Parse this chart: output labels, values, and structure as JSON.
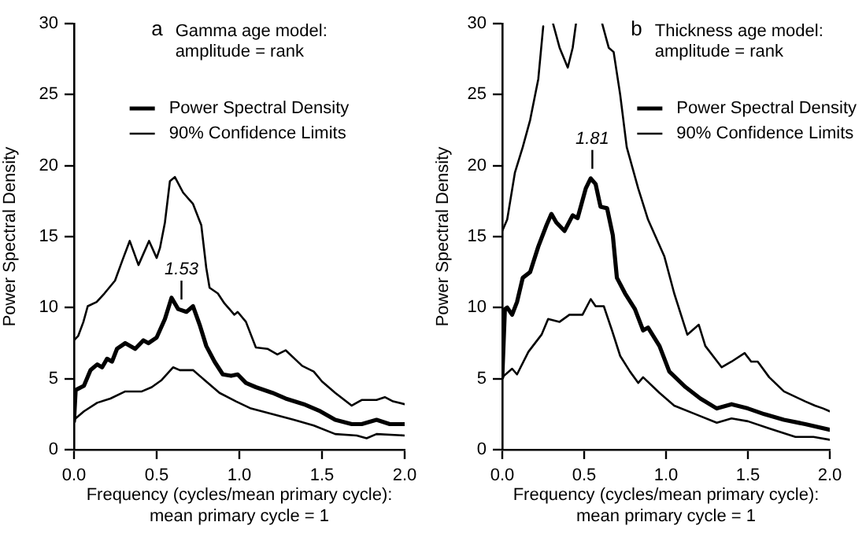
{
  "chart_data": [
    {
      "type": "line",
      "title": "Gamma age model: amplitude = rank",
      "xlabel": "Frequency (cycles/mean primary cycle): mean primary cycle = 1",
      "ylabel": "Power Spectral Density",
      "annotations": [
        "a",
        {
          "text": "1.53",
          "x": 0.65,
          "y": 9.8
        }
      ],
      "xlim": [
        0,
        2
      ],
      "ylim": [
        0,
        30
      ],
      "xticks": [
        {
          "value": 0,
          "label": "0.0"
        },
        {
          "value": 0.5,
          "label": "0.5"
        },
        {
          "value": 1,
          "label": "1.0"
        },
        {
          "value": 1.5,
          "label": "1.5"
        },
        {
          "value": 2,
          "label": "2.0"
        }
      ],
      "yticks": [
        0,
        5,
        10,
        15,
        20,
        25,
        30
      ],
      "legend": "top",
      "series": [
        {
          "name": "Power Spectral Density",
          "color": "#000000",
          "x": [
            0,
            0.01,
            0.06,
            0.1,
            0.14,
            0.17,
            0.2,
            0.23,
            0.26,
            0.31,
            0.37,
            0.42,
            0.45,
            0.5,
            0.55,
            0.59,
            0.63,
            0.68,
            0.72,
            0.76,
            0.8,
            0.85,
            0.9,
            0.95,
            0.99,
            1.04,
            1.1,
            1.2,
            1.28,
            1.39,
            1.49,
            1.58,
            1.68,
            1.74,
            1.83,
            1.91,
            2.0
          ],
          "values": [
            2.0,
            4.2,
            4.5,
            5.6,
            6.0,
            5.8,
            6.4,
            6.2,
            7.1,
            7.5,
            7.1,
            7.7,
            7.5,
            7.9,
            9.2,
            10.7,
            9.9,
            9.7,
            10.1,
            8.8,
            7.3,
            6.2,
            5.3,
            5.2,
            5.3,
            4.7,
            4.4,
            4.0,
            3.6,
            3.2,
            2.7,
            2.1,
            1.8,
            1.8,
            2.1,
            1.8,
            1.8
          ]
        },
        {
          "name": "90% Confidence Limits",
          "color": "#000000",
          "x": [
            0,
            0.025,
            0.057,
            0.083,
            0.137,
            0.184,
            0.248,
            0.295,
            0.337,
            0.39,
            0.454,
            0.5,
            0.52,
            0.55,
            0.58,
            0.61,
            0.66,
            0.72,
            0.77,
            0.8,
            0.82,
            0.87,
            0.91,
            0.97,
            0.99,
            1.04,
            1.1,
            1.17,
            1.23,
            1.28,
            1.38,
            1.45,
            1.5,
            1.58,
            1.68,
            1.74,
            1.83,
            1.88,
            1.93,
            2.0
          ],
          "values": [
            7.7,
            8.0,
            9.0,
            10.1,
            10.4,
            11.0,
            11.9,
            13.4,
            14.7,
            13.0,
            14.7,
            13.5,
            14.2,
            16.0,
            18.9,
            19.2,
            18.1,
            17.3,
            15.8,
            12.8,
            11.4,
            11.0,
            10.3,
            9.5,
            9.7,
            9.0,
            7.2,
            7.1,
            6.7,
            7.0,
            5.9,
            5.5,
            4.8,
            4.0,
            3.1,
            3.5,
            3.5,
            3.7,
            3.4,
            3.2
          ]
        },
        {
          "color": "#000000",
          "x": [
            0,
            0.06,
            0.14,
            0.22,
            0.31,
            0.41,
            0.47,
            0.53,
            0.6,
            0.64,
            0.72,
            0.79,
            0.88,
            0.98,
            1.07,
            1.2,
            1.33,
            1.45,
            1.58,
            1.71,
            1.77,
            1.83,
            2.0
          ],
          "values": [
            2.1,
            2.7,
            3.3,
            3.6,
            4.1,
            4.1,
            4.4,
            4.9,
            5.8,
            5.6,
            5.6,
            4.9,
            4.0,
            3.4,
            2.9,
            2.5,
            2.1,
            1.7,
            1.1,
            1.0,
            0.8,
            1.1,
            1.0
          ]
        }
      ]
    },
    {
      "type": "line",
      "title": "Thickness age model: amplitude = rank",
      "xlabel": "Frequency (cycles/mean primary cycle): mean primary cycle = 1",
      "ylabel": "Power Spectral Density",
      "annotations": [
        "b",
        {
          "text": "1.81",
          "x": 0.55,
          "y": 19.0
        }
      ],
      "xlim": [
        0,
        2
      ],
      "ylim": [
        0,
        30
      ],
      "xticks": [
        {
          "value": 0,
          "label": "0.0"
        },
        {
          "value": 0.5,
          "label": "0.5"
        },
        {
          "value": 1,
          "label": "1.0"
        },
        {
          "value": 1.5,
          "label": "1.5"
        },
        {
          "value": 2,
          "label": "2.0"
        }
      ],
      "yticks": [
        0,
        5,
        10,
        15,
        20,
        25,
        30
      ],
      "legend": "top right",
      "series": [
        {
          "name": "Power Spectral Density",
          "color": "#000000",
          "x": [
            0,
            0.016,
            0.03,
            0.06,
            0.09,
            0.125,
            0.17,
            0.22,
            0.27,
            0.3,
            0.33,
            0.38,
            0.43,
            0.46,
            0.51,
            0.54,
            0.57,
            0.6,
            0.64,
            0.675,
            0.7,
            0.75,
            0.81,
            0.86,
            0.89,
            0.96,
            1.02,
            1.12,
            1.21,
            1.31,
            1.4,
            1.5,
            1.6,
            1.72,
            1.85,
            2.0
          ],
          "values": [
            5.1,
            9.9,
            10.0,
            9.5,
            10.4,
            12.1,
            12.5,
            14.3,
            15.8,
            16.6,
            16.0,
            15.4,
            16.5,
            16.3,
            18.4,
            19.1,
            18.7,
            17.1,
            17.0,
            15.1,
            12.1,
            11.0,
            9.9,
            8.4,
            8.6,
            7.3,
            5.5,
            4.4,
            3.6,
            2.9,
            3.2,
            2.9,
            2.5,
            2.1,
            1.8,
            1.4
          ]
        },
        {
          "name": "90% Confidence Limits",
          "color": "#000000",
          "x": [
            0,
            0.03,
            0.077,
            0.125,
            0.17,
            0.22,
            0.25,
            0.285,
            0.31,
            0.35,
            0.4,
            0.43,
            0.45,
            0.53,
            0.61,
            0.65,
            0.68,
            0.72,
            0.76,
            0.83,
            0.89,
            0.99,
            1.05,
            1.13,
            1.2,
            1.24,
            1.34,
            1.4,
            1.48,
            1.52,
            1.56,
            1.63,
            1.72,
            1.85,
            1.91,
            1.96,
            2.0
          ],
          "values": [
            15.4,
            16.2,
            19.5,
            21.3,
            23.2,
            26.1,
            29.8,
            null,
            30,
            28.3,
            26.9,
            28.3,
            30,
            null,
            30,
            28.3,
            28.0,
            25.0,
            21.3,
            18.4,
            16.2,
            13.6,
            11.0,
            8.1,
            8.8,
            7.3,
            5.8,
            6.2,
            6.8,
            6.2,
            6.2,
            5.1,
            4.1,
            3.4,
            3.1,
            2.9,
            2.7
          ]
        },
        {
          "color": "#000000",
          "x": [
            0,
            0.06,
            0.09,
            0.16,
            0.24,
            0.28,
            0.35,
            0.41,
            0.49,
            0.54,
            0.57,
            0.62,
            0.67,
            0.72,
            0.78,
            0.83,
            0.86,
            0.96,
            1.05,
            1.18,
            1.31,
            1.4,
            1.5,
            1.63,
            1.79,
            1.9,
            2.0
          ],
          "values": [
            5.1,
            5.7,
            5.3,
            6.9,
            8.1,
            9.2,
            9.0,
            9.5,
            9.5,
            10.6,
            10.1,
            10.1,
            8.4,
            6.6,
            5.5,
            4.7,
            5.1,
            4.0,
            3.1,
            2.5,
            1.9,
            2.2,
            2.0,
            1.5,
            0.9,
            0.9,
            0.7
          ]
        }
      ]
    }
  ]
}
